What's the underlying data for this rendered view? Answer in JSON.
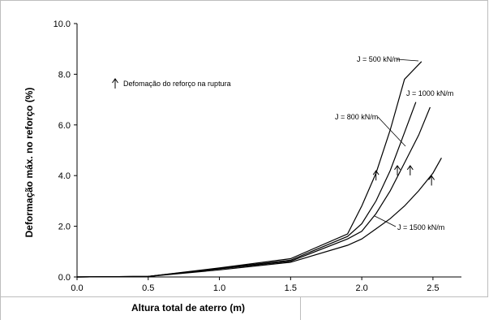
{
  "chart_data": {
    "type": "line",
    "title": "",
    "xlabel": "Altura total de aterro (m)",
    "ylabel": "Deformação máx. no reforço (%)",
    "xlim": [
      0,
      2.7
    ],
    "ylim": [
      0,
      10
    ],
    "x_ticks": [
      "0.0",
      "0.5",
      "1.0",
      "1.5",
      "2.0",
      "2.5"
    ],
    "y_ticks": [
      "0.0",
      "2.0",
      "4.0",
      "6.0",
      "8.0",
      "10.0"
    ],
    "legend_note": "Defomação do reforço na ruptura",
    "series": [
      {
        "name": "J = 500 kN/m",
        "x": [
          0,
          0.5,
          1.0,
          1.5,
          1.9,
          2.0,
          2.1,
          2.2,
          2.3,
          2.42
        ],
        "y": [
          0,
          0.02,
          0.36,
          0.72,
          1.7,
          2.8,
          4.1,
          5.8,
          7.8,
          8.5
        ]
      },
      {
        "name": "J = 800 kN/m",
        "x": [
          0,
          0.5,
          1.0,
          1.5,
          1.9,
          2.0,
          2.1,
          2.2,
          2.3,
          2.38
        ],
        "y": [
          0,
          0.02,
          0.34,
          0.66,
          1.6,
          2.1,
          3.0,
          4.2,
          5.7,
          6.9
        ]
      },
      {
        "name": "J = 1000 kN/m",
        "x": [
          0,
          0.5,
          1.0,
          1.5,
          1.9,
          2.0,
          2.1,
          2.2,
          2.3,
          2.4,
          2.48
        ],
        "y": [
          0,
          0.02,
          0.32,
          0.62,
          1.5,
          1.8,
          2.5,
          3.4,
          4.5,
          5.6,
          6.7
        ]
      },
      {
        "name": "J = 1500 kN/m",
        "x": [
          0,
          0.5,
          1.0,
          1.5,
          1.9,
          2.0,
          2.1,
          2.2,
          2.3,
          2.4,
          2.5,
          2.56
        ],
        "y": [
          0,
          0.02,
          0.28,
          0.58,
          1.25,
          1.5,
          1.9,
          2.3,
          2.8,
          3.4,
          4.1,
          4.7
        ]
      }
    ],
    "rupture_markers": [
      {
        "series": "J = 500 kN/m",
        "x": 2.1,
        "y": 4.0
      },
      {
        "series": "J = 800 kN/m",
        "x": 2.25,
        "y": 4.2
      },
      {
        "series": "J = 1000 kN/m",
        "x": 2.34,
        "y": 4.2
      },
      {
        "series": "J = 1500 kN/m",
        "x": 2.49,
        "y": 3.8
      }
    ],
    "line_color": "#000000",
    "grid": false
  }
}
